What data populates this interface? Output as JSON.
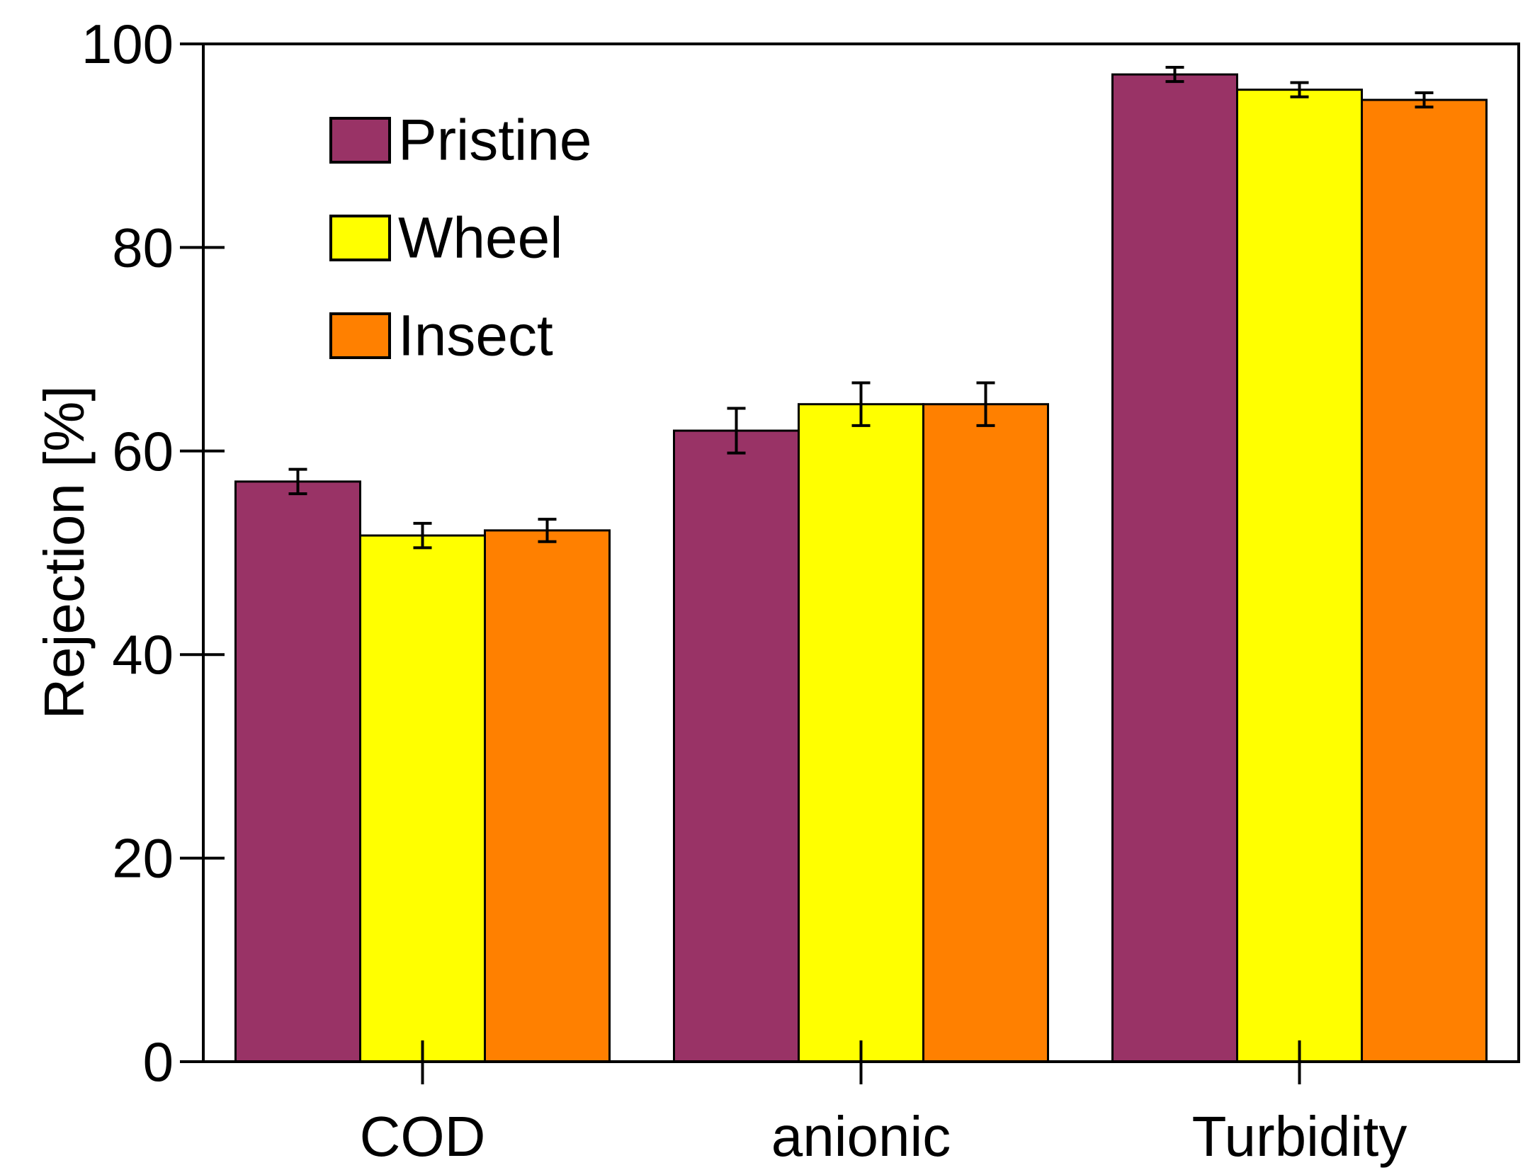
{
  "chart_data": {
    "type": "bar",
    "title": "",
    "xlabel": "",
    "ylabel": "Rejection [%]",
    "ylim": [
      0,
      100
    ],
    "yticks": [
      0,
      20,
      40,
      60,
      80,
      100
    ],
    "ytick_labels": [
      "0",
      "20",
      "40",
      "60",
      "80",
      "100"
    ],
    "categories": [
      "COD",
      "anionic",
      "Turbidity"
    ],
    "series": [
      {
        "name": "Pristine",
        "color": "#993366",
        "values": [
          57.0,
          62.0,
          97.0
        ],
        "errors": [
          1.2,
          2.2,
          0.7
        ]
      },
      {
        "name": "Wheel",
        "color": "#ffff00",
        "values": [
          51.7,
          64.6,
          95.5
        ],
        "errors": [
          1.2,
          2.1,
          0.7
        ]
      },
      {
        "name": "Insect",
        "color": "#ff8000",
        "values": [
          52.2,
          64.6,
          94.5
        ],
        "errors": [
          1.1,
          2.1,
          0.7
        ]
      }
    ],
    "grid": false,
    "legend_position": "top-left"
  }
}
